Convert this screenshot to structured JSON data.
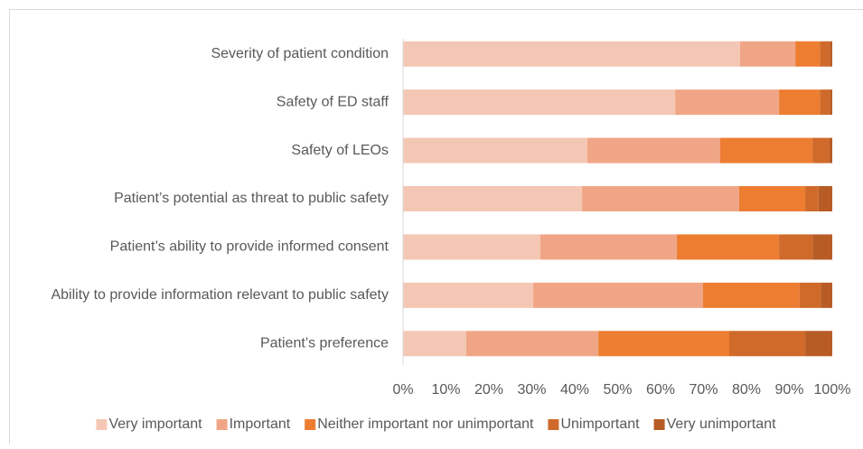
{
  "chart_data": {
    "type": "stacked_bar_horizontal",
    "categories": [
      "Severity of patient condition",
      "Safety of ED staff",
      "Safety of LEOs",
      "Patient’s potential as threat to public safety",
      "Patient’s ability to provide informed consent",
      "Ability to provide information relevant to public safety",
      "Patient’s preference"
    ],
    "series": [
      {
        "name": "Very important",
        "color": "#f4c7b5",
        "values": [
          78.5,
          63.4,
          42.9,
          41.7,
          32.0,
          30.3,
          14.7
        ]
      },
      {
        "name": "Important",
        "color": "#f0a686",
        "values": [
          12.9,
          24.2,
          31.0,
          36.6,
          31.8,
          39.6,
          30.8
        ]
      },
      {
        "name": "Neither important nor unimportant",
        "color": "#ed7d31",
        "values": [
          5.7,
          9.5,
          21.5,
          15.4,
          23.8,
          22.5,
          30.5
        ]
      },
      {
        "name": "Unimportant",
        "color": "#d06a2a",
        "values": [
          2.3,
          2.3,
          3.8,
          3.1,
          7.8,
          4.9,
          17.7
        ]
      },
      {
        "name": "Very unimportant",
        "color": "#b85c25",
        "values": [
          0.6,
          0.6,
          0.8,
          3.2,
          4.6,
          2.7,
          6.3
        ]
      }
    ],
    "xlim": [
      0,
      100
    ],
    "xticks": [
      {
        "value": 0,
        "label": "0%"
      },
      {
        "value": 10,
        "label": "10%"
      },
      {
        "value": 20,
        "label": "20%"
      },
      {
        "value": 30,
        "label": "30%"
      },
      {
        "value": 40,
        "label": "40%"
      },
      {
        "value": 50,
        "label": "50%"
      },
      {
        "value": 60,
        "label": "60%"
      },
      {
        "value": 70,
        "label": "70%"
      },
      {
        "value": 80,
        "label": "80%"
      },
      {
        "value": 90,
        "label": "90%"
      },
      {
        "value": 100,
        "label": "100%"
      }
    ],
    "legend": "bottom",
    "grid": false
  }
}
